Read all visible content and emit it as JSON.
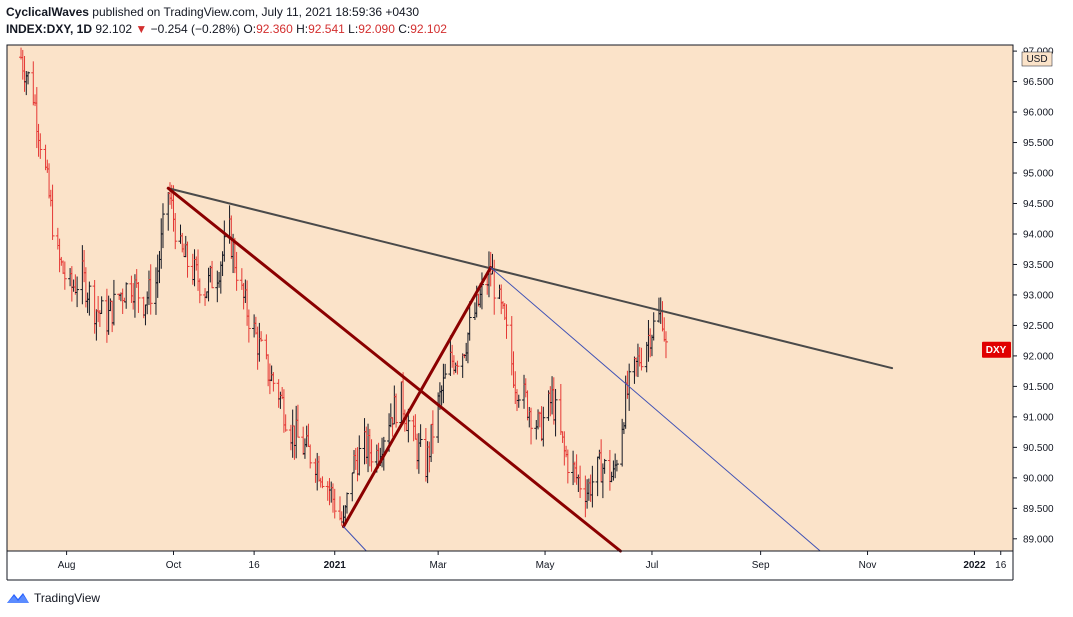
{
  "header": {
    "author": "CyclicalWaves",
    "published_text": " published on TradingView.com, July 11, 2021 18:59:36 +0430",
    "symbol": "INDEX:DXY, 1D",
    "last": "92.102",
    "change": "−0.254 (−0.28%)",
    "o_label": "O:",
    "o_value": "92.360",
    "h_label": "H:",
    "h_value": "92.541",
    "l_label": "L:",
    "l_value": "92.090",
    "c_label": "C:",
    "c_value": "92.102",
    "down_arrow": "▼"
  },
  "chart_data": {
    "type": "ohlc",
    "currency_label": "USD",
    "symbol_tag": "DXY",
    "last_price": 92.102,
    "y_range": [
      88.8,
      97.1
    ],
    "y_ticks": [
      97.0,
      96.5,
      96.0,
      95.5,
      95.0,
      94.5,
      94.0,
      93.5,
      93.0,
      92.5,
      92.0,
      91.5,
      91.0,
      90.5,
      90.0,
      89.5,
      89.0
    ],
    "y_tick_labels": [
      "97.000",
      "96.500",
      "96.000",
      "95.500",
      "95.000",
      "94.500",
      "94.000",
      "93.500",
      "93.000",
      "92.500",
      "92.000",
      "91.500",
      "91.000",
      "90.500",
      "90.000",
      "89.500",
      "89.000"
    ],
    "x_ticks": [
      {
        "label": "Aug",
        "date": "2020-08-01",
        "bold": false
      },
      {
        "label": "Oct",
        "date": "2020-10-01",
        "bold": false
      },
      {
        "label": "16",
        "date": "2020-11-16",
        "bold": false
      },
      {
        "label": "2021",
        "date": "2021-01-01",
        "bold": true
      },
      {
        "label": "Mar",
        "date": "2021-03-01",
        "bold": false
      },
      {
        "label": "May",
        "date": "2021-05-01",
        "bold": false
      },
      {
        "label": "Jul",
        "date": "2021-07-01",
        "bold": false
      },
      {
        "label": "Sep",
        "date": "2021-09-01",
        "bold": false
      },
      {
        "label": "Nov",
        "date": "2021-11-01",
        "bold": false
      },
      {
        "label": "2022",
        "date": "2022-01-01",
        "bold": true
      },
      {
        "label": "16",
        "date": "2022-01-16",
        "bold": false
      }
    ],
    "price_path": [
      [
        "2020-07-06",
        96.9
      ],
      [
        "2020-07-13",
        96.3
      ],
      [
        "2020-07-20",
        95.0
      ],
      [
        "2020-07-27",
        93.6
      ],
      [
        "2020-08-03",
        93.1
      ],
      [
        "2020-08-10",
        93.3
      ],
      [
        "2020-08-17",
        92.8
      ],
      [
        "2020-08-24",
        92.6
      ],
      [
        "2020-08-31",
        93.0
      ],
      [
        "2020-09-07",
        93.2
      ],
      [
        "2020-09-14",
        92.9
      ],
      [
        "2020-09-21",
        93.2
      ],
      [
        "2020-09-28",
        94.7
      ],
      [
        "2020-10-05",
        93.7
      ],
      [
        "2020-10-12",
        93.4
      ],
      [
        "2020-10-19",
        93.1
      ],
      [
        "2020-10-26",
        93.4
      ],
      [
        "2020-11-02",
        94.0
      ],
      [
        "2020-11-09",
        93.0
      ],
      [
        "2020-11-16",
        92.4
      ],
      [
        "2020-11-23",
        91.8
      ],
      [
        "2020-11-30",
        91.4
      ],
      [
        "2020-12-07",
        90.8
      ],
      [
        "2020-12-14",
        90.5
      ],
      [
        "2020-12-21",
        90.3
      ],
      [
        "2020-12-28",
        89.9
      ],
      [
        "2021-01-06",
        89.2
      ],
      [
        "2021-01-11",
        90.2
      ],
      [
        "2021-01-18",
        90.5
      ],
      [
        "2021-01-25",
        90.4
      ],
      [
        "2021-02-01",
        91.0
      ],
      [
        "2021-02-08",
        91.3
      ],
      [
        "2021-02-15",
        90.6
      ],
      [
        "2021-02-22",
        90.2
      ],
      [
        "2021-03-01",
        91.2
      ],
      [
        "2021-03-08",
        91.9
      ],
      [
        "2021-03-15",
        92.1
      ],
      [
        "2021-03-22",
        92.7
      ],
      [
        "2021-03-31",
        93.4
      ],
      [
        "2021-04-07",
        92.6
      ],
      [
        "2021-04-14",
        91.6
      ],
      [
        "2021-04-21",
        91.2
      ],
      [
        "2021-04-28",
        90.8
      ],
      [
        "2021-05-05",
        91.3
      ],
      [
        "2021-05-12",
        90.4
      ],
      [
        "2021-05-19",
        90.0
      ],
      [
        "2021-05-25",
        89.8
      ],
      [
        "2021-06-02",
        90.2
      ],
      [
        "2021-06-09",
        90.0
      ],
      [
        "2021-06-16",
        91.3
      ],
      [
        "2021-06-23",
        91.9
      ],
      [
        "2021-06-30",
        92.4
      ],
      [
        "2021-07-07",
        92.7
      ],
      [
        "2021-07-09",
        92.1
      ]
    ],
    "trendlines": [
      {
        "name": "",
        "color": "#4a4a4a",
        "width": 2,
        "from": [
          "2020-09-28",
          94.75
        ],
        "to": [
          "2021-11-15",
          91.8
        ]
      },
      {
        "name": "",
        "color": "#8b0000",
        "width": 3,
        "from": [
          "2020-09-28",
          94.75
        ],
        "to": [
          "2021-06-13",
          88.8
        ]
      },
      {
        "name": "",
        "color": "#8b0000",
        "width": 3,
        "from": [
          "2021-01-06",
          89.2
        ],
        "to": [
          "2021-03-31",
          93.45
        ]
      },
      {
        "name": "",
        "color": "#3f51b5",
        "width": 1,
        "from": [
          "2021-03-31",
          93.45
        ],
        "to": [
          "2021-10-05",
          88.8
        ]
      },
      {
        "name": "",
        "color": "#3f51b5",
        "width": 1,
        "from": [
          "2021-01-06",
          89.2
        ],
        "to": [
          "2021-01-19",
          88.8
        ]
      }
    ],
    "colors": {
      "background": "#fbe3c9",
      "bar_up": "#131722",
      "bar_down": "#e53935",
      "last_price_tag": "#e00000",
      "axis": "#131722"
    },
    "grid": false,
    "legend": "none"
  },
  "footer": {
    "brand": "TradingView",
    "logo_icon": "tradingview-logo-icon"
  }
}
